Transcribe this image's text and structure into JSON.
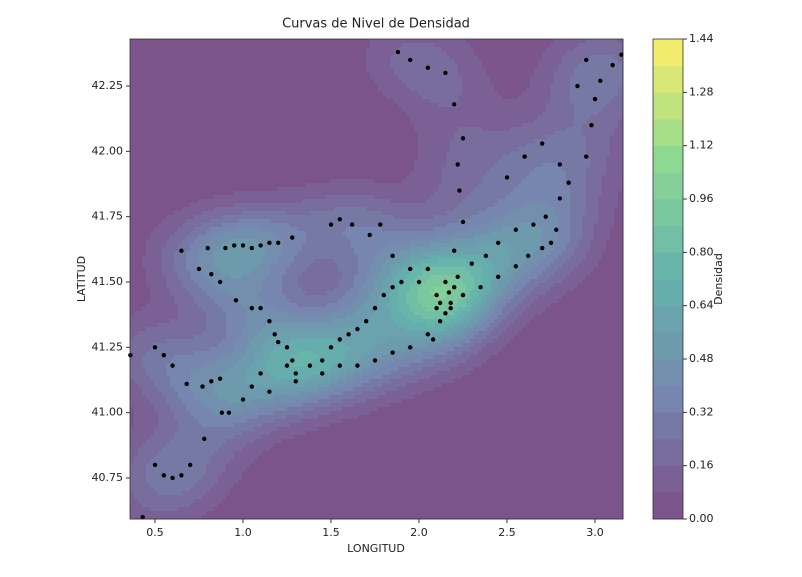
{
  "chart_data": {
    "type": "contour",
    "title": "Curvas de Nivel de Densidad",
    "xlabel": "LONGITUD",
    "ylabel": "LATITUD",
    "colorbar_label": "Densidad",
    "xlim": [
      0.358,
      3.159
    ],
    "ylim": [
      40.593,
      42.43
    ],
    "xticks": [
      0.5,
      {
        "value": 1,
        "label": "1.0"
      },
      1.5,
      {
        "value": 2,
        "label": "2.0"
      },
      2.5,
      {
        "value": 3,
        "label": "3.0"
      }
    ],
    "yticks": [
      40.75,
      {
        "value": 41,
        "label": "41.00"
      },
      41.25,
      {
        "value": 41.5,
        "label": "41.50"
      },
      41.75,
      {
        "value": 42,
        "label": "42.00"
      },
      42.25
    ],
    "clim": [
      0,
      1.44
    ],
    "cticks": [
      {
        "value": 0,
        "label": "0.00"
      },
      0.16,
      0.32,
      0.48,
      0.64,
      {
        "value": 0.8,
        "label": "0.80"
      },
      0.96,
      1.12,
      1.28,
      1.44
    ],
    "point_color": "#000000",
    "x": [
      0.43,
      0.5,
      0.55,
      0.6,
      0.65,
      0.7,
      0.78,
      0.88,
      0.92,
      0.77,
      0.82,
      0.87,
      0.68,
      0.6,
      0.55,
      0.5,
      0.36,
      0.65,
      0.75,
      0.8,
      0.82,
      0.87,
      0.9,
      0.95,
      1.0,
      1.05,
      1.1,
      1.15,
      1.2,
      1.28,
      0.96,
      1.05,
      1.1,
      1.15,
      1.18,
      1.2,
      1.25,
      1.28,
      1.25,
      1.1,
      1.05,
      1.3,
      1.38,
      1.45,
      1.5,
      1.55,
      1.6,
      1.65,
      1.7,
      1.75,
      1.8,
      1.85,
      1.9,
      1.95,
      1.85,
      1.72,
      1.78,
      1.62,
      1.55,
      1.5,
      1.0,
      1.15,
      1.3,
      1.45,
      1.55,
      1.65,
      1.75,
      1.85,
      1.95,
      2.05,
      2.12,
      2.18,
      2.25,
      2.35,
      2.45,
      2.55,
      2.62,
      2.7,
      2.75,
      2.78,
      2.72,
      2.65,
      2.55,
      2.45,
      2.38,
      2.3,
      2.1,
      2.15,
      2.2,
      2.22,
      2.18,
      2.15,
      2.08,
      2.0,
      2.05,
      2.2,
      2.25,
      2.23,
      2.22,
      2.25,
      2.2,
      2.15,
      2.05,
      1.95,
      1.88,
      2.5,
      2.6,
      2.7,
      2.8,
      2.85,
      2.8,
      2.95,
      2.98,
      3.0,
      3.03,
      3.1,
      3.15,
      2.95,
      2.9,
      2.12,
      2.17,
      2.1
    ],
    "y": [
      40.6,
      40.8,
      40.76,
      40.75,
      40.76,
      40.8,
      40.9,
      41.0,
      41.0,
      41.1,
      41.12,
      41.13,
      41.11,
      41.18,
      41.22,
      41.25,
      41.22,
      41.62,
      41.55,
      41.63,
      41.53,
      41.5,
      41.63,
      41.64,
      41.64,
      41.63,
      41.64,
      41.65,
      41.65,
      41.67,
      41.43,
      41.4,
      41.4,
      41.35,
      41.3,
      41.27,
      41.25,
      41.2,
      41.18,
      41.15,
      41.1,
      41.15,
      41.18,
      41.2,
      41.25,
      41.28,
      41.3,
      41.32,
      41.35,
      41.4,
      41.45,
      41.48,
      41.5,
      41.55,
      41.6,
      41.68,
      41.72,
      41.72,
      41.74,
      41.72,
      41.05,
      41.08,
      41.12,
      41.15,
      41.18,
      41.18,
      41.2,
      41.23,
      41.25,
      41.3,
      41.35,
      41.4,
      41.45,
      41.48,
      41.52,
      41.56,
      41.6,
      41.63,
      41.65,
      41.7,
      41.75,
      41.72,
      41.7,
      41.65,
      41.6,
      41.57,
      41.45,
      41.5,
      41.48,
      41.52,
      41.42,
      41.38,
      41.28,
      41.5,
      41.55,
      41.62,
      41.73,
      41.85,
      41.95,
      42.05,
      42.18,
      42.3,
      42.32,
      42.35,
      42.38,
      41.9,
      41.98,
      42.03,
      41.95,
      41.88,
      41.82,
      41.98,
      42.1,
      42.2,
      42.27,
      42.33,
      42.37,
      42.35,
      42.25,
      41.42,
      41.46,
      41.4
    ]
  }
}
